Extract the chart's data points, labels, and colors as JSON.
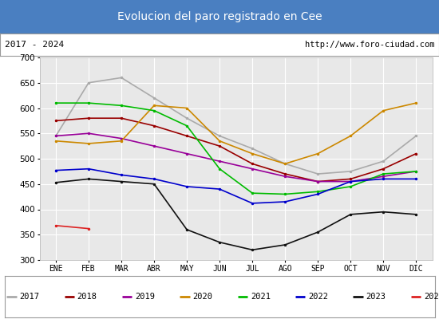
{
  "title": "Evolucion del paro registrado en Cee",
  "title_bg": "#4a7fc1",
  "title_color": "white",
  "subtitle_left": "2017 - 2024",
  "subtitle_right": "http://www.foro-ciudad.com",
  "xlabel_months": [
    "ENE",
    "FEB",
    "MAR",
    "ABR",
    "MAY",
    "JUN",
    "JUL",
    "AGO",
    "SEP",
    "OCT",
    "NOV",
    "DIC"
  ],
  "ylim": [
    300,
    700
  ],
  "yticks": [
    300,
    350,
    400,
    450,
    500,
    550,
    600,
    650,
    700
  ],
  "series": {
    "2017": {
      "color": "#aaaaaa",
      "data": [
        545,
        650,
        660,
        620,
        580,
        545,
        520,
        490,
        470,
        475,
        495,
        545
      ]
    },
    "2018": {
      "color": "#990000",
      "data": [
        575,
        580,
        580,
        565,
        545,
        525,
        490,
        470,
        455,
        460,
        480,
        510
      ]
    },
    "2019": {
      "color": "#990099",
      "data": [
        545,
        550,
        540,
        525,
        510,
        495,
        480,
        465,
        455,
        455,
        465,
        475
      ]
    },
    "2020": {
      "color": "#cc8800",
      "data": [
        535,
        530,
        535,
        605,
        600,
        535,
        510,
        490,
        510,
        545,
        595,
        610
      ]
    },
    "2021": {
      "color": "#00bb00",
      "data": [
        610,
        610,
        605,
        595,
        565,
        480,
        432,
        430,
        435,
        445,
        470,
        475
      ]
    },
    "2022": {
      "color": "#0000cc",
      "data": [
        477,
        480,
        468,
        460,
        445,
        440,
        412,
        415,
        430,
        455,
        460,
        460
      ]
    },
    "2023": {
      "color": "#111111",
      "data": [
        453,
        460,
        455,
        450,
        360,
        335,
        320,
        330,
        355,
        390,
        395,
        390
      ]
    },
    "2024": {
      "color": "#dd2222",
      "data": [
        368,
        362,
        null,
        null,
        null,
        null,
        null,
        null,
        null,
        null,
        null,
        null
      ]
    }
  }
}
